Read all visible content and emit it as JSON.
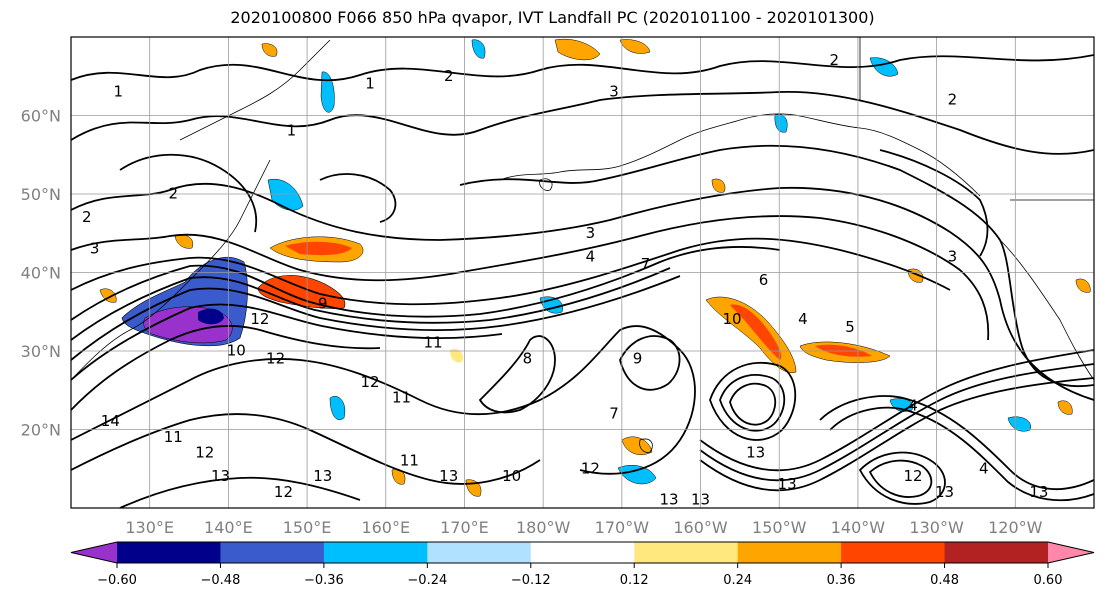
{
  "title": "2020100800 F066 850 hPa qvapor, IVT Landfall PC (2020101100 - 2020101300)",
  "map": {
    "projection": "plate-carree",
    "lon_range": [
      120,
      250
    ],
    "lat_range": [
      10,
      70
    ],
    "gridlines": true,
    "lat_ticks": [
      {
        "lat": 20,
        "label": "20°N"
      },
      {
        "lat": 30,
        "label": "30°N"
      },
      {
        "lat": 40,
        "label": "40°N"
      },
      {
        "lat": 50,
        "label": "50°N"
      },
      {
        "lat": 60,
        "label": "60°N"
      }
    ],
    "lon_ticks": [
      {
        "lon": 130,
        "label": "130°E"
      },
      {
        "lon": 140,
        "label": "140°E"
      },
      {
        "lon": 150,
        "label": "150°E"
      },
      {
        "lon": 160,
        "label": "160°E"
      },
      {
        "lon": 170,
        "label": "170°E"
      },
      {
        "lon": 180,
        "label": "180°W"
      },
      {
        "lon": 190,
        "label": "170°W"
      },
      {
        "lon": 200,
        "label": "160°W"
      },
      {
        "lon": 210,
        "label": "150°W"
      },
      {
        "lon": 220,
        "label": "140°W"
      },
      {
        "lon": 230,
        "label": "130°W"
      },
      {
        "lon": 240,
        "label": "120°W"
      }
    ]
  },
  "colorbar": {
    "colors": [
      "#9932cc",
      "#00008b",
      "#3a5bcc",
      "#00bfff",
      "#b0e2ff",
      "#ffffff",
      "#ffe97f",
      "#ffa500",
      "#ff4500",
      "#b22222",
      "#ff88aa"
    ],
    "labels": [
      "−0.60",
      "−0.48",
      "−0.36",
      "−0.24",
      "−0.12",
      "0.12",
      "0.24",
      "0.36",
      "0.48",
      "0.60"
    ],
    "extend": "both"
  },
  "contour_labels": [
    {
      "text": "1",
      "lon": 126,
      "lat": 63
    },
    {
      "text": "1",
      "lon": 158,
      "lat": 64
    },
    {
      "text": "2",
      "lon": 168,
      "lat": 65
    },
    {
      "text": "3",
      "lon": 189,
      "lat": 63
    },
    {
      "text": "2",
      "lon": 217,
      "lat": 67
    },
    {
      "text": "2",
      "lon": 232,
      "lat": 62
    },
    {
      "text": "1",
      "lon": 148,
      "lat": 58
    },
    {
      "text": "2",
      "lon": 133,
      "lat": 50
    },
    {
      "text": "2",
      "lon": 122,
      "lat": 47
    },
    {
      "text": "3",
      "lon": 123,
      "lat": 43
    },
    {
      "text": "3",
      "lon": 186,
      "lat": 45
    },
    {
      "text": "4",
      "lon": 186,
      "lat": 42
    },
    {
      "text": "7",
      "lon": 193,
      "lat": 41
    },
    {
      "text": "6",
      "lon": 208,
      "lat": 39
    },
    {
      "text": "3",
      "lon": 232,
      "lat": 42
    },
    {
      "text": "4",
      "lon": 213,
      "lat": 34
    },
    {
      "text": "5",
      "lon": 219,
      "lat": 33
    },
    {
      "text": "10",
      "lon": 204,
      "lat": 34
    },
    {
      "text": "9",
      "lon": 152,
      "lat": 36
    },
    {
      "text": "12",
      "lon": 144,
      "lat": 34
    },
    {
      "text": "11",
      "lon": 166,
      "lat": 31
    },
    {
      "text": "10",
      "lon": 141,
      "lat": 30
    },
    {
      "text": "12",
      "lon": 146,
      "lat": 29
    },
    {
      "text": "12",
      "lon": 158,
      "lat": 26
    },
    {
      "text": "11",
      "lon": 162,
      "lat": 24
    },
    {
      "text": "9",
      "lon": 192,
      "lat": 29
    },
    {
      "text": "8",
      "lon": 178,
      "lat": 29
    },
    {
      "text": "7",
      "lon": 189,
      "lat": 22
    },
    {
      "text": "4",
      "lon": 227,
      "lat": 23
    },
    {
      "text": "14",
      "lon": 125,
      "lat": 21
    },
    {
      "text": "11",
      "lon": 133,
      "lat": 19
    },
    {
      "text": "12",
      "lon": 137,
      "lat": 17
    },
    {
      "text": "13",
      "lon": 139,
      "lat": 14
    },
    {
      "text": "11",
      "lon": 163,
      "lat": 16
    },
    {
      "text": "13",
      "lon": 168,
      "lat": 14
    },
    {
      "text": "10",
      "lon": 176,
      "lat": 14
    },
    {
      "text": "12",
      "lon": 186,
      "lat": 15
    },
    {
      "text": "12",
      "lon": 147,
      "lat": 12
    },
    {
      "text": "13",
      "lon": 152,
      "lat": 14
    },
    {
      "text": "13",
      "lon": 200,
      "lat": 11
    },
    {
      "text": "13",
      "lon": 196,
      "lat": 11
    },
    {
      "text": "13",
      "lon": 207,
      "lat": 17
    },
    {
      "text": "13",
      "lon": 211,
      "lat": 13
    },
    {
      "text": "12",
      "lon": 227,
      "lat": 14
    },
    {
      "text": "13",
      "lon": 231,
      "lat": 12
    },
    {
      "text": "4",
      "lon": 236,
      "lat": 15
    },
    {
      "text": "13",
      "lon": 243,
      "lat": 12
    }
  ]
}
